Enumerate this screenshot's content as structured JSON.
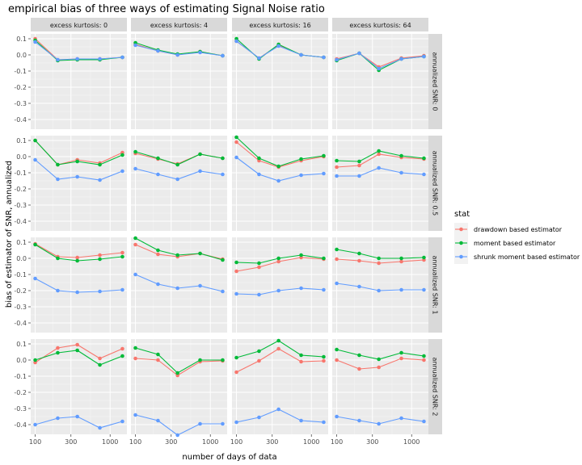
{
  "chart_data": {
    "type": "line",
    "title": "empirical bias of three ways of estimating Signal Noise ratio",
    "xlabel": "number of days of data",
    "ylabel": "bias of estimator of SNR, annualized",
    "x_scale": "log10",
    "x_ticks": [
      100,
      300,
      1000
    ],
    "y_ticks": [
      0.1,
      0.0,
      -0.1,
      -0.2,
      -0.3,
      -0.4
    ],
    "ylim": [
      -0.46,
      0.13
    ],
    "x": [
      100,
      200,
      365,
      730,
      1460
    ],
    "col_facets": [
      "excess kurtosis: 0",
      "excess kurtosis: 4",
      "excess kurtosis: 16",
      "excess kurtosis: 64"
    ],
    "row_facets": [
      "annualized SNR: 0",
      "annualized SNR: 0.5",
      "annualized SNR: 1",
      "annualized SNR: 2"
    ],
    "legend": {
      "title": "stat",
      "position": "right",
      "entries": [
        {
          "name": "drawdown based estimator",
          "color": "#F8766D"
        },
        {
          "name": "moment based estimator",
          "color": "#00BA38"
        },
        {
          "name": "shrunk moment based estimator",
          "color": "#619CFF"
        }
      ]
    },
    "panels": [
      [
        [
          [
            0.1,
            -0.03,
            -0.025,
            -0.025,
            -0.015
          ],
          [
            0.09,
            -0.035,
            -0.03,
            -0.03,
            -0.015
          ],
          [
            0.08,
            -0.03,
            -0.025,
            -0.025,
            -0.015
          ]
        ],
        [
          [
            0.065,
            0.025,
            0.0,
            0.02,
            -0.005
          ],
          [
            0.075,
            0.03,
            0.005,
            0.02,
            -0.005
          ],
          [
            0.06,
            0.025,
            0.0,
            0.015,
            -0.005
          ]
        ],
        [
          [
            0.085,
            -0.02,
            0.06,
            0.0,
            -0.015
          ],
          [
            0.1,
            -0.025,
            0.065,
            0.0,
            -0.015
          ],
          [
            0.085,
            -0.02,
            0.055,
            0.0,
            -0.015
          ]
        ],
        [
          [
            -0.025,
            0.01,
            -0.075,
            -0.02,
            -0.005
          ],
          [
            -0.035,
            0.01,
            -0.095,
            -0.025,
            -0.01
          ],
          [
            -0.03,
            0.01,
            -0.085,
            -0.025,
            -0.01
          ]
        ]
      ],
      [
        [
          [
            0.1,
            -0.05,
            -0.02,
            -0.04,
            0.025
          ],
          [
            0.1,
            -0.05,
            -0.03,
            -0.05,
            0.01
          ],
          [
            -0.02,
            -0.14,
            -0.125,
            -0.145,
            -0.09
          ]
        ],
        [
          [
            0.02,
            -0.015,
            -0.045,
            0.015,
            -0.01
          ],
          [
            0.03,
            -0.01,
            -0.05,
            0.015,
            -0.01
          ],
          [
            -0.075,
            -0.11,
            -0.14,
            -0.09,
            -0.11
          ]
        ],
        [
          [
            0.09,
            -0.025,
            -0.065,
            -0.025,
            0.0
          ],
          [
            0.12,
            -0.01,
            -0.06,
            -0.015,
            0.005
          ],
          [
            -0.005,
            -0.11,
            -0.15,
            -0.115,
            -0.105
          ]
        ],
        [
          [
            -0.065,
            -0.055,
            0.015,
            -0.005,
            -0.015
          ],
          [
            -0.025,
            -0.03,
            0.035,
            0.005,
            -0.01
          ],
          [
            -0.12,
            -0.12,
            -0.07,
            -0.1,
            -0.11
          ]
        ]
      ],
      [
        [
          [
            0.09,
            0.01,
            0.005,
            0.02,
            0.035
          ],
          [
            0.085,
            0.0,
            -0.015,
            -0.005,
            0.01
          ],
          [
            -0.125,
            -0.2,
            -0.21,
            -0.205,
            -0.195
          ]
        ],
        [
          [
            0.085,
            0.025,
            0.01,
            0.03,
            -0.005
          ],
          [
            0.125,
            0.05,
            0.02,
            0.03,
            -0.01
          ],
          [
            -0.1,
            -0.16,
            -0.185,
            -0.17,
            -0.205
          ]
        ],
        [
          [
            -0.08,
            -0.055,
            -0.02,
            0.005,
            -0.005
          ],
          [
            -0.025,
            -0.03,
            0.0,
            0.02,
            0.0
          ],
          [
            -0.22,
            -0.225,
            -0.2,
            -0.185,
            -0.195
          ]
        ],
        [
          [
            -0.005,
            -0.015,
            -0.03,
            -0.02,
            -0.01
          ],
          [
            0.055,
            0.03,
            0.0,
            0.0,
            0.005
          ],
          [
            -0.155,
            -0.175,
            -0.2,
            -0.195,
            -0.195
          ]
        ]
      ],
      [
        [
          [
            -0.015,
            0.075,
            0.095,
            0.01,
            0.07
          ],
          [
            0.0,
            0.045,
            0.06,
            -0.03,
            0.025
          ],
          [
            -0.4,
            -0.36,
            -0.35,
            -0.42,
            -0.38
          ]
        ],
        [
          [
            0.01,
            0.0,
            -0.095,
            -0.01,
            -0.005
          ],
          [
            0.075,
            0.035,
            -0.08,
            0.0,
            0.0
          ],
          [
            -0.34,
            -0.375,
            -0.465,
            -0.395,
            -0.395
          ]
        ],
        [
          [
            -0.075,
            -0.005,
            0.07,
            -0.01,
            -0.005
          ],
          [
            0.015,
            0.055,
            0.12,
            0.03,
            0.02
          ],
          [
            -0.385,
            -0.355,
            -0.305,
            -0.375,
            -0.385
          ]
        ],
        [
          [
            0.0,
            -0.055,
            -0.045,
            0.01,
            0.0
          ],
          [
            0.065,
            0.03,
            0.005,
            0.045,
            0.025
          ],
          [
            -0.35,
            -0.375,
            -0.395,
            -0.36,
            -0.38
          ]
        ]
      ]
    ]
  }
}
